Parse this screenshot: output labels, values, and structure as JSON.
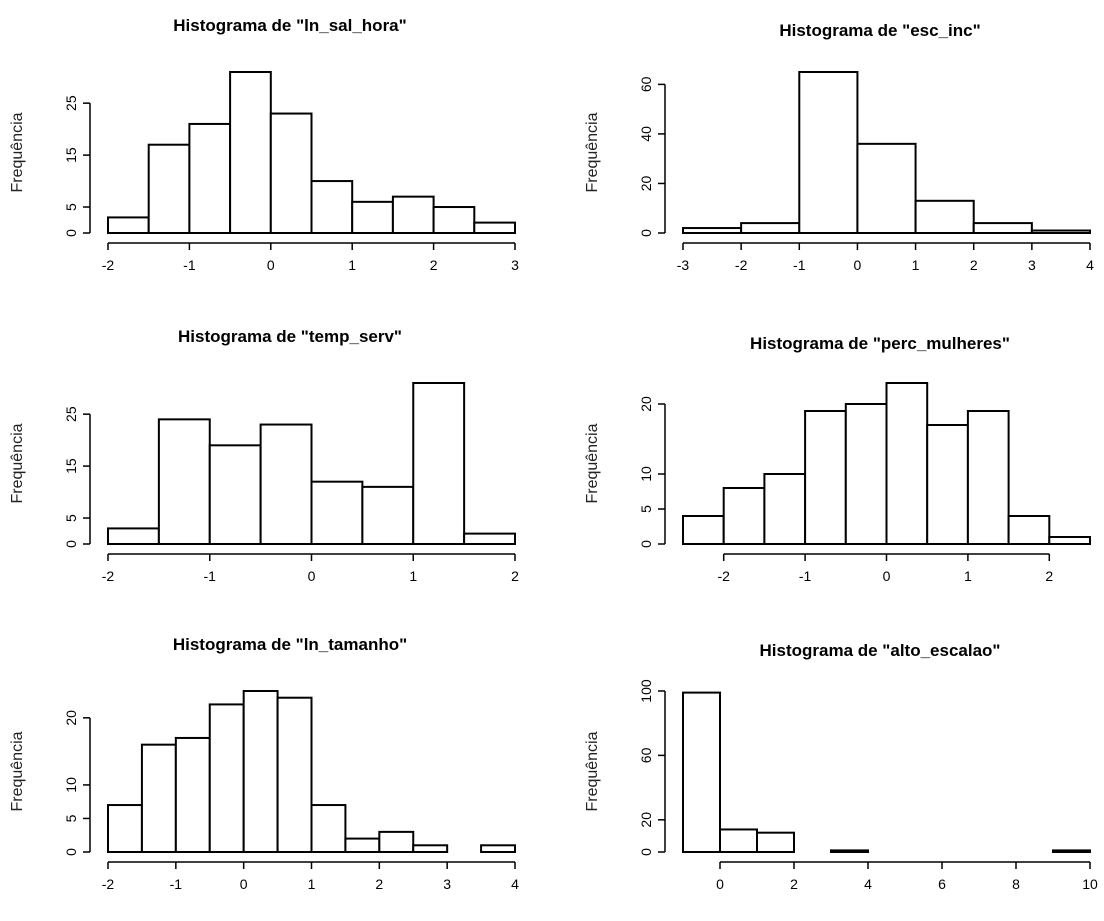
{
  "chart_data": [
    {
      "type": "bar",
      "title": "Histograma de \"ln_sal_hora\"",
      "ylabel": "Frequência",
      "breaks": [
        -2,
        -1.5,
        -1,
        -0.5,
        0,
        0.5,
        1,
        1.5,
        2,
        2.5,
        3
      ],
      "values": [
        3,
        17,
        21,
        31,
        23,
        10,
        6,
        7,
        5,
        2
      ],
      "xticks": [
        -2,
        -1,
        0,
        1,
        2,
        3
      ],
      "yticks": [
        0,
        5,
        15,
        25
      ],
      "xlim": [
        -2,
        3
      ],
      "ylim": [
        0,
        31
      ]
    },
    {
      "type": "bar",
      "title": "Histograma de \"esc_inc\"",
      "ylabel": "Frequência",
      "breaks": [
        -3,
        -2,
        -1,
        0,
        1,
        2,
        3,
        4
      ],
      "values": [
        2,
        4,
        65,
        36,
        13,
        4,
        1
      ],
      "xticks": [
        -3,
        -2,
        -1,
        0,
        1,
        2,
        3,
        4
      ],
      "yticks": [
        0,
        20,
        40,
        60
      ],
      "xlim": [
        -3,
        4
      ],
      "ylim": [
        0,
        65
      ]
    },
    {
      "type": "bar",
      "title": "Histograma de \"temp_serv\"",
      "ylabel": "Frequência",
      "breaks": [
        -2,
        -1.5,
        -1,
        -0.5,
        0,
        0.5,
        1,
        1.5,
        2
      ],
      "values": [
        3,
        24,
        19,
        23,
        12,
        11,
        31,
        2
      ],
      "xticks": [
        -2,
        -1,
        0,
        1,
        2
      ],
      "yticks": [
        0,
        5,
        15,
        25
      ],
      "xlim": [
        -2,
        2
      ],
      "ylim": [
        0,
        31
      ]
    },
    {
      "type": "bar",
      "title": "Histograma de \"perc_mulheres\"",
      "ylabel": "Frequência",
      "breaks": [
        -2.5,
        -2,
        -1.5,
        -1,
        -0.5,
        0,
        0.5,
        1,
        1.5,
        2,
        2.5
      ],
      "values": [
        4,
        8,
        10,
        19,
        20,
        23,
        17,
        19,
        4,
        1
      ],
      "xticks": [
        -2,
        -1,
        0,
        1,
        2
      ],
      "yticks": [
        0,
        5,
        10,
        20
      ],
      "xlim": [
        -2.5,
        2.5
      ],
      "ylim": [
        0,
        23
      ]
    },
    {
      "type": "bar",
      "title": "Histograma de \"ln_tamanho\"",
      "ylabel": "Frequência",
      "breaks": [
        -2,
        -1.5,
        -1,
        -0.5,
        0,
        0.5,
        1,
        1.5,
        2,
        2.5,
        3,
        3.5,
        4
      ],
      "values": [
        7,
        16,
        17,
        22,
        24,
        23,
        7,
        2,
        3,
        1,
        0,
        1
      ],
      "xticks": [
        -2,
        -1,
        0,
        1,
        2,
        3,
        4
      ],
      "yticks": [
        0,
        5,
        10,
        20
      ],
      "xlim": [
        -2,
        4
      ],
      "ylim": [
        0,
        24
      ]
    },
    {
      "type": "bar",
      "title": "Histograma de \"alto_escalao\"",
      "ylabel": "Frequência",
      "breaks": [
        -1,
        0,
        1,
        2,
        3,
        4,
        5,
        6,
        7,
        8,
        9,
        10
      ],
      "values": [
        99,
        14,
        12,
        0,
        1,
        0,
        0,
        0,
        0,
        0,
        1
      ],
      "xticks": [
        0,
        2,
        4,
        6,
        8,
        10
      ],
      "yticks": [
        0,
        20,
        60,
        100
      ],
      "xlim": [
        -1,
        10
      ],
      "ylim": [
        0,
        100
      ]
    }
  ]
}
